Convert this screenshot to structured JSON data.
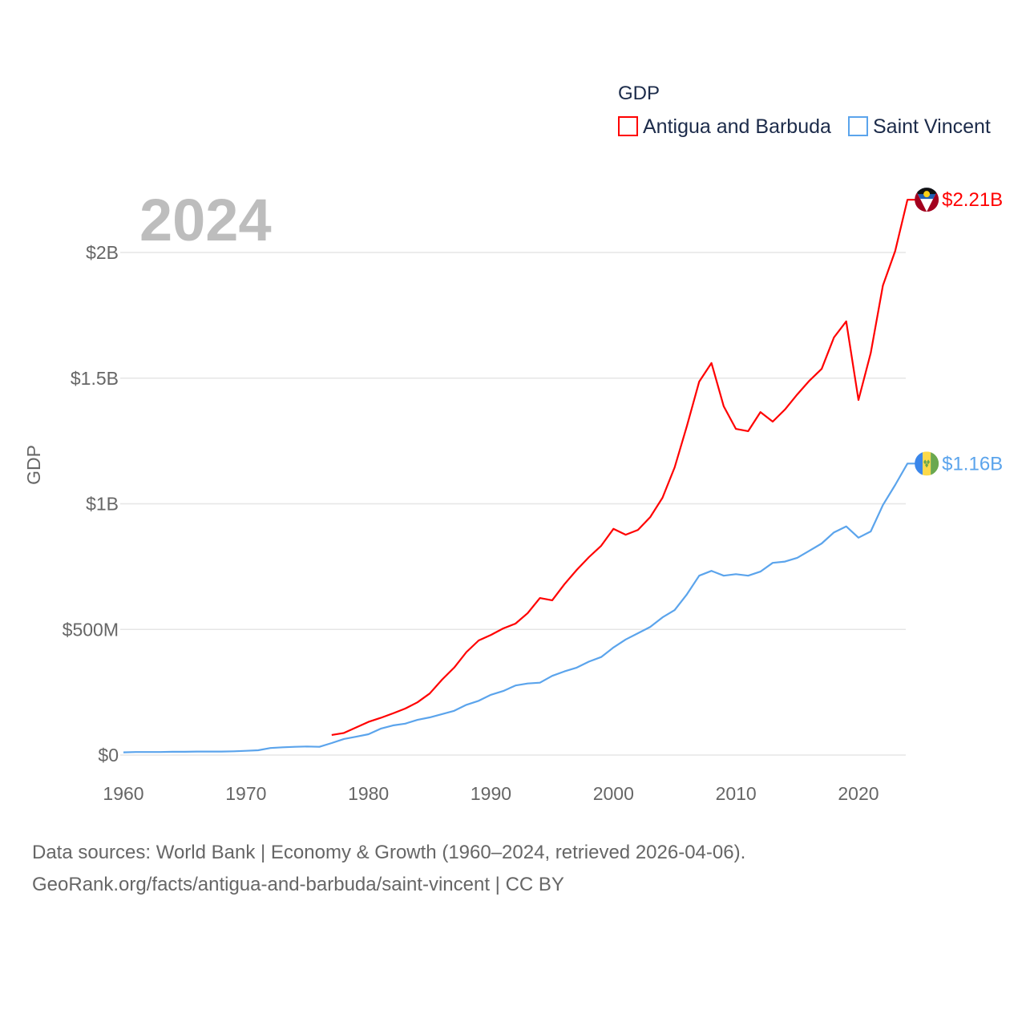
{
  "chart_data": {
    "type": "line",
    "title": "GDP",
    "year_label": "2024",
    "xlabel": "",
    "ylabel": "GDP",
    "xlim": [
      1960,
      2024
    ],
    "ylim": [
      0,
      2.35
    ],
    "y_unit": "billions USD",
    "x_ticks": [
      "1960",
      "1970",
      "1980",
      "1990",
      "2000",
      "2010",
      "2020"
    ],
    "y_ticks": [
      {
        "value": 0,
        "label": "$0"
      },
      {
        "value": 0.5,
        "label": "$500M"
      },
      {
        "value": 1,
        "label": "$1B"
      },
      {
        "value": 1.5,
        "label": "$1.5B"
      },
      {
        "value": 2,
        "label": "$2B"
      }
    ],
    "grid": true,
    "legend_title": "GDP",
    "legend_position": "top-right",
    "series": [
      {
        "name": "Antigua and Barbuda",
        "color": "#ff0000",
        "end_label": "$2.21B",
        "flag": "antigua-flag",
        "start_year": 1977,
        "values": [
          0.08,
          0.088,
          0.11,
          0.132,
          0.148,
          0.166,
          0.185,
          0.21,
          0.245,
          0.3,
          0.348,
          0.41,
          0.456,
          0.478,
          0.504,
          0.523,
          0.565,
          0.625,
          0.616,
          0.68,
          0.737,
          0.788,
          0.833,
          0.9,
          0.877,
          0.896,
          0.947,
          1.024,
          1.145,
          1.31,
          1.486,
          1.56,
          1.388,
          1.298,
          1.289,
          1.365,
          1.327,
          1.375,
          1.435,
          1.49,
          1.537,
          1.662,
          1.726,
          1.413,
          1.6,
          1.869,
          2.006,
          2.21
        ]
      },
      {
        "name": "Saint Vincent",
        "color": "#5ba4ec",
        "end_label": "$1.16B",
        "flag": "saint-vincent-flag",
        "start_year": 1960,
        "values": [
          0.011,
          0.012,
          0.012,
          0.012,
          0.013,
          0.013,
          0.014,
          0.014,
          0.014,
          0.015,
          0.017,
          0.019,
          0.028,
          0.031,
          0.033,
          0.034,
          0.033,
          0.048,
          0.064,
          0.073,
          0.083,
          0.105,
          0.118,
          0.125,
          0.14,
          0.15,
          0.163,
          0.176,
          0.2,
          0.216,
          0.24,
          0.255,
          0.277,
          0.285,
          0.288,
          0.315,
          0.333,
          0.348,
          0.372,
          0.39,
          0.428,
          0.46,
          0.485,
          0.51,
          0.548,
          0.577,
          0.64,
          0.714,
          0.733,
          0.714,
          0.72,
          0.714,
          0.73,
          0.765,
          0.77,
          0.785,
          0.813,
          0.842,
          0.886,
          0.91,
          0.865,
          0.89,
          0.995,
          1.075,
          1.16
        ]
      }
    ]
  },
  "footer": {
    "line1": "Data sources: World Bank | Economy & Growth (1960–2024, retrieved 2026-04-06).",
    "line2": "GeoRank.org/facts/antigua-and-barbuda/saint-vincent | CC BY"
  }
}
